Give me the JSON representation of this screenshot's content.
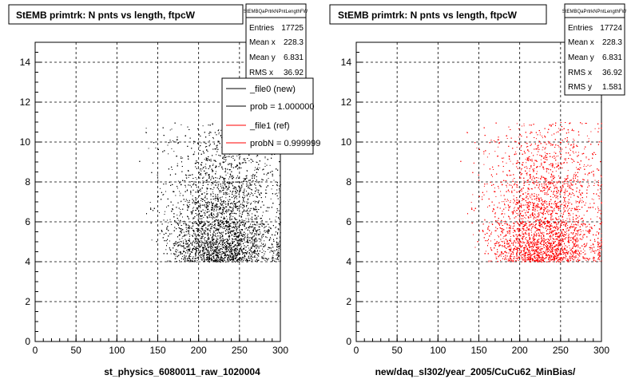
{
  "footer_text": "",
  "chart_data": [
    {
      "type": "scatter",
      "title": "StEMB primtrk: N pnts vs length, ftpcW",
      "xlabel": "st_physics_6080011_raw_1020004",
      "ylabel": "",
      "xlim": [
        0,
        300
      ],
      "ylim": [
        0,
        15
      ],
      "x_ticks": [
        "0",
        "50",
        "100",
        "150",
        "200",
        "250",
        "300"
      ],
      "y_ticks": [
        "0",
        "2",
        "4",
        "6",
        "8",
        "10",
        "12",
        "14"
      ],
      "grid": true,
      "marker_color": "#000000",
      "series": [
        {
          "name": "_file0 (new)",
          "color": "#000000",
          "description_points": {
            "x_range": [
              110,
              300
            ],
            "y_range": [
              5,
              11
            ]
          }
        }
      ],
      "stats": {
        "header": "StEMBQaPrtrkNPntLengthFW",
        "rows": [
          {
            "label": "Entries",
            "value": "17725"
          },
          {
            "label": "Mean x",
            "value": "228.3"
          },
          {
            "label": "Mean y",
            "value": "6.831"
          },
          {
            "label": "RMS x",
            "value": "36.92"
          }
        ]
      },
      "legend": {
        "position": "top-right",
        "entries": [
          {
            "label": "_file0 (new)",
            "color": "#000000"
          },
          {
            "label": "prob = 1.000000",
            "color": "#000000"
          },
          {
            "label": "_file1 (ref)",
            "color": "#ff0000"
          },
          {
            "label": "probN = 0.999999",
            "color": "#ff0000"
          }
        ]
      }
    },
    {
      "type": "scatter",
      "title": "StEMB primtrk: N pnts vs length, ftpcW",
      "xlabel": "new/daq_sl302/year_2005/CuCu62_MinBias/",
      "ylabel": "",
      "xlim": [
        0,
        300
      ],
      "ylim": [
        0,
        15
      ],
      "x_ticks": [
        "0",
        "50",
        "100",
        "150",
        "200",
        "250",
        "300"
      ],
      "y_ticks": [
        "0",
        "2",
        "4",
        "6",
        "8",
        "10",
        "12",
        "14"
      ],
      "grid": true,
      "marker_color": "#ff0000",
      "series": [
        {
          "name": "_file1 (ref)",
          "color": "#ff0000",
          "description_points": {
            "x_range": [
              110,
              300
            ],
            "y_range": [
              5,
              11
            ]
          }
        }
      ],
      "stats": {
        "header": "StEMBQaPrtrkNPntLengthFW",
        "rows": [
          {
            "label": "Entries",
            "value": "17724"
          },
          {
            "label": "Mean x",
            "value": "228.3"
          },
          {
            "label": "Mean y",
            "value": "6.831"
          },
          {
            "label": "RMS x",
            "value": "36.92"
          },
          {
            "label": "RMS y",
            "value": "1.581"
          }
        ]
      }
    }
  ]
}
